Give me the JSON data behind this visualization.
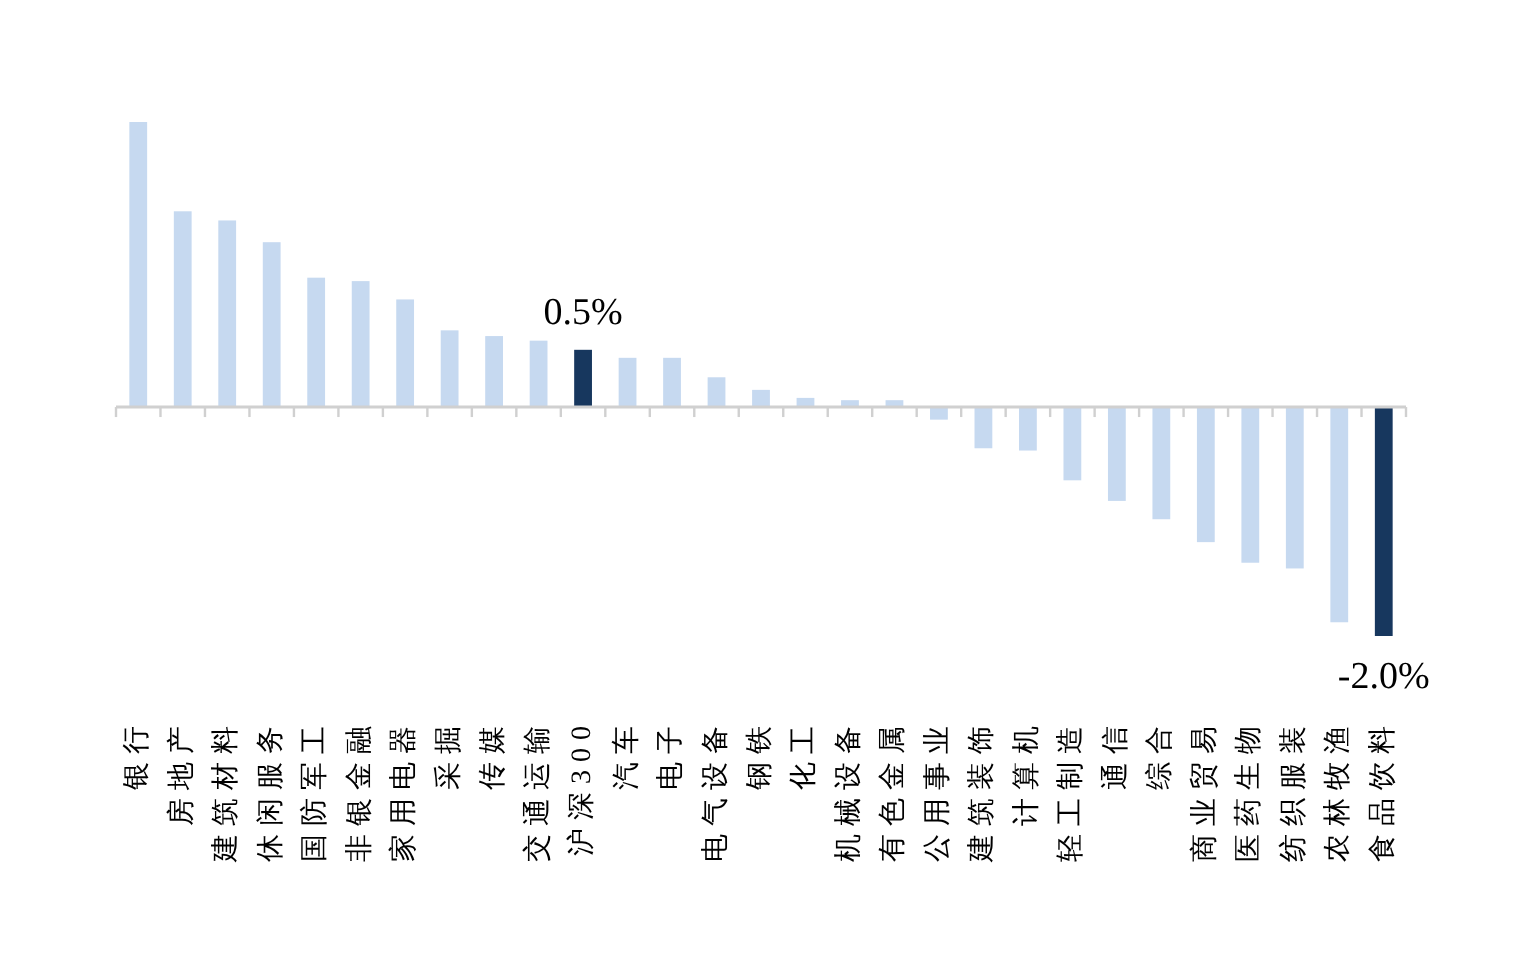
{
  "chart_data": {
    "type": "bar",
    "categories": [
      "银行",
      "房地产",
      "建筑材料",
      "休闲服务",
      "国防军工",
      "非银金融",
      "家用电器",
      "采掘",
      "传媒",
      "交通运输",
      "沪深300",
      "汽车",
      "电子",
      "电气设备",
      "钢铁",
      "化工",
      "机械设备",
      "有色金属",
      "公用事业",
      "建筑装饰",
      "计算机",
      "轻工制造",
      "通信",
      "综合",
      "商业贸易",
      "医药生物",
      "纺织服装",
      "农林牧渔",
      "食品饮料"
    ],
    "values": [
      2.49,
      1.71,
      1.63,
      1.44,
      1.13,
      1.1,
      0.94,
      0.67,
      0.62,
      0.58,
      0.5,
      0.43,
      0.43,
      0.26,
      0.15,
      0.08,
      0.06,
      0.06,
      -0.11,
      -0.36,
      -0.38,
      -0.64,
      -0.82,
      -0.98,
      -1.18,
      -1.36,
      -1.41,
      -1.88,
      -2.0
    ],
    "colors": [
      "#c6d9f0",
      "#c6d9f0",
      "#c6d9f0",
      "#c6d9f0",
      "#c6d9f0",
      "#c6d9f0",
      "#c6d9f0",
      "#c6d9f0",
      "#c6d9f0",
      "#c6d9f0",
      "#17375e",
      "#c6d9f0",
      "#c6d9f0",
      "#c6d9f0",
      "#c6d9f0",
      "#c6d9f0",
      "#c6d9f0",
      "#c6d9f0",
      "#c6d9f0",
      "#c6d9f0",
      "#c6d9f0",
      "#c6d9f0",
      "#c6d9f0",
      "#c6d9f0",
      "#c6d9f0",
      "#c6d9f0",
      "#c6d9f0",
      "#c6d9f0",
      "#17375e"
    ],
    "value_labels": [
      null,
      null,
      null,
      null,
      null,
      null,
      null,
      null,
      null,
      null,
      "0.5%",
      null,
      null,
      null,
      null,
      null,
      null,
      null,
      null,
      null,
      null,
      null,
      null,
      null,
      null,
      null,
      null,
      null,
      "-2.0%"
    ]
  }
}
